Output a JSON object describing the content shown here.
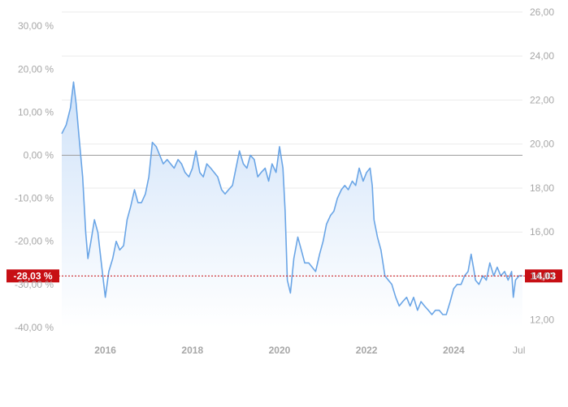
{
  "chart_data": {
    "type": "area",
    "title": "",
    "xlabel": "",
    "ylabel": "",
    "x_range": [
      2015.0,
      2025.58
    ],
    "x_ticks": [
      {
        "label": "2016",
        "x": 2016.0
      },
      {
        "label": "2018",
        "x": 2018.0
      },
      {
        "label": "2020",
        "x": 2020.0
      },
      {
        "label": "2022",
        "x": 2022.0
      },
      {
        "label": "2024",
        "x": 2024.0
      },
      {
        "label": "Jul",
        "x": 2025.5
      }
    ],
    "y_left": {
      "unit": "%",
      "range": [
        -43.0,
        33.0
      ],
      "ticks": [
        "30,00 %",
        "20,00 %",
        "10,00 %",
        "0,00 %",
        "-10,00 %",
        "-20,00 %",
        "-30,00 %",
        "-40,00 %"
      ],
      "tick_values": [
        30,
        20,
        10,
        0,
        -10,
        -20,
        -30,
        -40
      ]
    },
    "y_right": {
      "range": [
        10.66,
        26.13
      ],
      "ticks": [
        "26,00",
        "24,00",
        "22,00",
        "20,00",
        "18,00",
        "16,00",
        "14,00",
        "12,00"
      ],
      "tick_values": [
        26,
        24,
        22,
        20,
        18,
        16,
        14,
        12
      ]
    },
    "baseline_pct": 0,
    "current": {
      "pct_label": "-28,03 %",
      "price_label": "14,03",
      "pct": -28.03,
      "price": 14.03
    },
    "series": [
      {
        "values_unit": "%",
        "points": [
          [
            2015.0,
            5
          ],
          [
            2015.1,
            7
          ],
          [
            2015.2,
            11
          ],
          [
            2015.27,
            17
          ],
          [
            2015.33,
            12
          ],
          [
            2015.4,
            4
          ],
          [
            2015.48,
            -5
          ],
          [
            2015.55,
            -18
          ],
          [
            2015.6,
            -24
          ],
          [
            2015.67,
            -20
          ],
          [
            2015.75,
            -15
          ],
          [
            2015.83,
            -18
          ],
          [
            2015.92,
            -26
          ],
          [
            2016.0,
            -33
          ],
          [
            2016.08,
            -27
          ],
          [
            2016.17,
            -24
          ],
          [
            2016.25,
            -20
          ],
          [
            2016.33,
            -22
          ],
          [
            2016.42,
            -21
          ],
          [
            2016.5,
            -15
          ],
          [
            2016.58,
            -12
          ],
          [
            2016.67,
            -8
          ],
          [
            2016.75,
            -11
          ],
          [
            2016.83,
            -11
          ],
          [
            2016.92,
            -9
          ],
          [
            2017.0,
            -5
          ],
          [
            2017.08,
            3
          ],
          [
            2017.17,
            2
          ],
          [
            2017.25,
            0
          ],
          [
            2017.33,
            -2
          ],
          [
            2017.42,
            -1
          ],
          [
            2017.5,
            -2
          ],
          [
            2017.58,
            -3
          ],
          [
            2017.67,
            -1
          ],
          [
            2017.75,
            -2
          ],
          [
            2017.83,
            -4
          ],
          [
            2017.92,
            -5
          ],
          [
            2018.0,
            -3
          ],
          [
            2018.08,
            1
          ],
          [
            2018.17,
            -4
          ],
          [
            2018.25,
            -5
          ],
          [
            2018.33,
            -2
          ],
          [
            2018.42,
            -3
          ],
          [
            2018.5,
            -4
          ],
          [
            2018.58,
            -5
          ],
          [
            2018.67,
            -8
          ],
          [
            2018.75,
            -9
          ],
          [
            2018.83,
            -8
          ],
          [
            2018.92,
            -7
          ],
          [
            2019.0,
            -3
          ],
          [
            2019.08,
            1
          ],
          [
            2019.17,
            -2
          ],
          [
            2019.25,
            -3
          ],
          [
            2019.33,
            0
          ],
          [
            2019.42,
            -1
          ],
          [
            2019.5,
            -5
          ],
          [
            2019.58,
            -4
          ],
          [
            2019.67,
            -3
          ],
          [
            2019.75,
            -6
          ],
          [
            2019.83,
            -2
          ],
          [
            2019.92,
            -4
          ],
          [
            2020.0,
            2
          ],
          [
            2020.08,
            -3
          ],
          [
            2020.13,
            -13
          ],
          [
            2020.18,
            -29
          ],
          [
            2020.25,
            -32
          ],
          [
            2020.33,
            -24
          ],
          [
            2020.42,
            -19
          ],
          [
            2020.5,
            -22
          ],
          [
            2020.58,
            -25
          ],
          [
            2020.67,
            -25
          ],
          [
            2020.75,
            -26
          ],
          [
            2020.83,
            -27
          ],
          [
            2020.92,
            -23
          ],
          [
            2021.0,
            -20
          ],
          [
            2021.08,
            -16
          ],
          [
            2021.17,
            -14
          ],
          [
            2021.25,
            -13
          ],
          [
            2021.33,
            -10
          ],
          [
            2021.42,
            -8
          ],
          [
            2021.5,
            -7
          ],
          [
            2021.58,
            -8
          ],
          [
            2021.67,
            -6
          ],
          [
            2021.75,
            -7
          ],
          [
            2021.83,
            -3
          ],
          [
            2021.92,
            -6
          ],
          [
            2022.0,
            -4
          ],
          [
            2022.08,
            -3
          ],
          [
            2022.13,
            -7
          ],
          [
            2022.17,
            -15
          ],
          [
            2022.25,
            -19
          ],
          [
            2022.33,
            -22
          ],
          [
            2022.42,
            -28
          ],
          [
            2022.5,
            -29
          ],
          [
            2022.58,
            -30
          ],
          [
            2022.67,
            -33
          ],
          [
            2022.75,
            -35
          ],
          [
            2022.83,
            -34
          ],
          [
            2022.92,
            -33
          ],
          [
            2023.0,
            -35
          ],
          [
            2023.08,
            -33
          ],
          [
            2023.17,
            -36
          ],
          [
            2023.25,
            -34
          ],
          [
            2023.33,
            -35
          ],
          [
            2023.42,
            -36
          ],
          [
            2023.5,
            -37
          ],
          [
            2023.58,
            -36
          ],
          [
            2023.67,
            -36
          ],
          [
            2023.75,
            -37
          ],
          [
            2023.83,
            -37
          ],
          [
            2023.92,
            -34
          ],
          [
            2024.0,
            -31
          ],
          [
            2024.08,
            -30
          ],
          [
            2024.17,
            -30
          ],
          [
            2024.25,
            -28
          ],
          [
            2024.33,
            -27
          ],
          [
            2024.4,
            -23
          ],
          [
            2024.47,
            -27
          ],
          [
            2024.5,
            -29
          ],
          [
            2024.58,
            -30
          ],
          [
            2024.67,
            -28
          ],
          [
            2024.75,
            -29
          ],
          [
            2024.83,
            -25
          ],
          [
            2024.92,
            -28
          ],
          [
            2025.0,
            -26
          ],
          [
            2025.08,
            -28
          ],
          [
            2025.17,
            -27
          ],
          [
            2025.25,
            -29
          ],
          [
            2025.33,
            -27
          ],
          [
            2025.37,
            -33
          ],
          [
            2025.42,
            -29
          ],
          [
            2025.5,
            -28
          ],
          [
            2025.58,
            -28
          ]
        ]
      }
    ],
    "colors": {
      "line": "#6aa5e6",
      "fill_top": "#cfe2f9",
      "fill_bottom": "#ffffff",
      "grid": "#ebebeb",
      "baseline": "#9e9e9e",
      "badge": "#c70f14",
      "ticks": "#a7a7a7"
    },
    "grid": true
  }
}
